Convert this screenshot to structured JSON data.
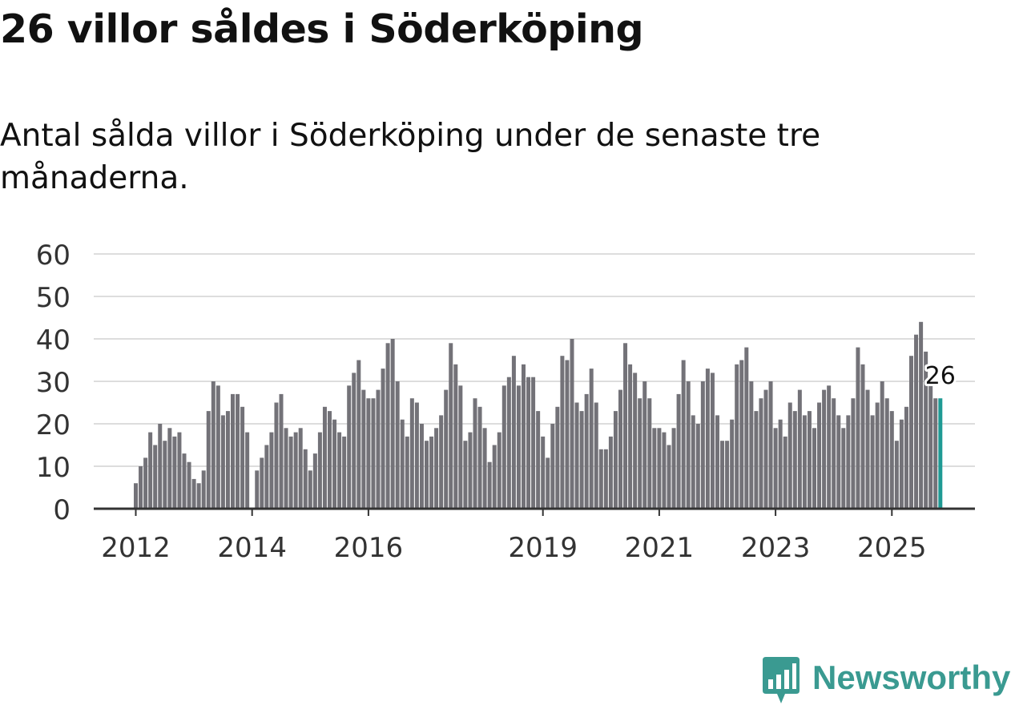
{
  "title": "26 villor såldes i Söderköping",
  "subtitle": "Antal sålda villor i Söderköping under de senaste tre månaderna.",
  "brand": "Newsworthy",
  "colors": {
    "bar": "#737278",
    "highlight": "#1f9a94",
    "grid": "#dddddd",
    "axis": "#333333",
    "brand": "#3a9a91"
  },
  "chart_data": {
    "type": "bar",
    "title": "26 villor såldes i Söderköping",
    "xlabel": "",
    "ylabel": "",
    "ylim": [
      0,
      60
    ],
    "yticks": [
      0,
      10,
      20,
      30,
      40,
      50,
      60
    ],
    "xticks": [
      "2012",
      "2014",
      "2016",
      "2019",
      "2021",
      "2023",
      "2025"
    ],
    "start_period": "2012-01",
    "frequency": "monthly (rolling three-month total)",
    "values": [
      6,
      10,
      12,
      18,
      15,
      20,
      16,
      19,
      17,
      18,
      13,
      11,
      7,
      6,
      9,
      23,
      30,
      29,
      22,
      23,
      27,
      27,
      24,
      18,
      0,
      9,
      12,
      15,
      18,
      25,
      27,
      19,
      17,
      18,
      19,
      14,
      9,
      13,
      18,
      24,
      23,
      21,
      18,
      17,
      29,
      32,
      35,
      28,
      26,
      26,
      28,
      33,
      39,
      40,
      30,
      21,
      17,
      26,
      25,
      20,
      16,
      17,
      19,
      22,
      28,
      39,
      34,
      29,
      16,
      18,
      26,
      24,
      19,
      11,
      15,
      18,
      29,
      31,
      36,
      29,
      34,
      31,
      31,
      23,
      17,
      12,
      20,
      24,
      36,
      35,
      40,
      25,
      23,
      27,
      33,
      25,
      14,
      14,
      17,
      23,
      28,
      39,
      34,
      32,
      26,
      30,
      26,
      19,
      19,
      18,
      15,
      19,
      27,
      35,
      30,
      22,
      20,
      30,
      33,
      32,
      22,
      16,
      16,
      21,
      34,
      35,
      38,
      30,
      23,
      26,
      28,
      30,
      19,
      21,
      17,
      25,
      23,
      28,
      22,
      23,
      19,
      25,
      28,
      29,
      26,
      22,
      19,
      22,
      26,
      38,
      34,
      28,
      22,
      25,
      30,
      26,
      23,
      16,
      21,
      24,
      36,
      41,
      44,
      37,
      29,
      26,
      26
    ],
    "highlight_last": true,
    "annotation": "26"
  }
}
